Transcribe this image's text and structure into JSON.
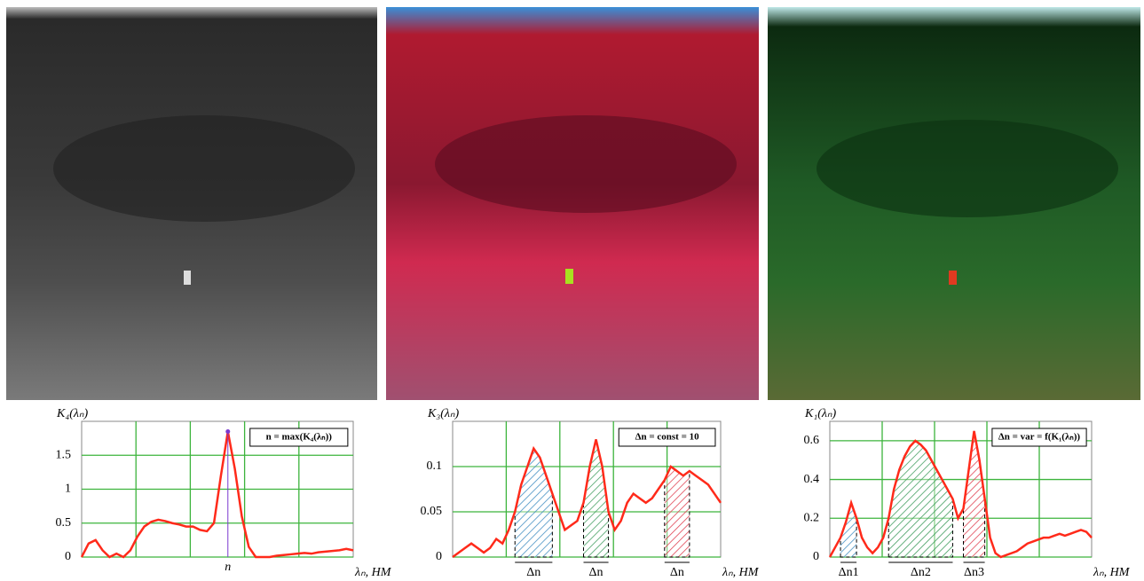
{
  "chart_data": [
    {
      "type": "line",
      "y_label": "K₄(λₙ)",
      "x_label": "λₙ, НМ",
      "annotation": "n = max(K₄(λₙ))",
      "peak_label": "n",
      "ylim": [
        0,
        2
      ],
      "yticks": [
        0,
        0.5,
        1,
        1.5
      ],
      "grid": true,
      "series": [
        {
          "color": "#ff2a1a",
          "values": [
            0.0,
            0.2,
            0.25,
            0.1,
            0.0,
            0.05,
            0.0,
            0.1,
            0.3,
            0.45,
            0.52,
            0.55,
            0.53,
            0.5,
            0.48,
            0.45,
            0.45,
            0.4,
            0.38,
            0.5,
            1.2,
            1.85,
            1.3,
            0.6,
            0.15,
            0.0,
            0.0,
            0.0,
            0.02,
            0.03,
            0.04,
            0.05,
            0.06,
            0.05,
            0.07,
            0.08,
            0.09,
            0.1,
            0.12,
            0.1
          ]
        }
      ]
    },
    {
      "type": "line",
      "y_label": "K₃(λₙ)",
      "x_label": "λₙ, НМ",
      "annotation": "Δn = const = 10",
      "interval_labels": [
        "Δn",
        "Δn",
        "Δn"
      ],
      "ylim": [
        0,
        0.15
      ],
      "yticks": [
        0,
        0.05,
        0.1
      ],
      "grid": true,
      "series": [
        {
          "color": "#ff2a1a",
          "values": [
            0,
            0.005,
            0.01,
            0.015,
            0.01,
            0.005,
            0.01,
            0.02,
            0.015,
            0.03,
            0.05,
            0.08,
            0.1,
            0.12,
            0.11,
            0.09,
            0.07,
            0.05,
            0.03,
            0.035,
            0.04,
            0.06,
            0.1,
            0.13,
            0.1,
            0.05,
            0.03,
            0.04,
            0.06,
            0.07,
            0.065,
            0.06,
            0.065,
            0.075,
            0.085,
            0.1,
            0.095,
            0.09,
            0.095,
            0.09,
            0.085,
            0.08,
            0.07,
            0.06
          ]
        }
      ]
    },
    {
      "type": "line",
      "y_label": "K₁(λₙ)",
      "x_label": "λₙ, НМ",
      "annotation": "Δn = var = f(K₁(λₙ))",
      "interval_labels": [
        "Δn1",
        "Δn2",
        "Δn3"
      ],
      "ylim": [
        0,
        0.7
      ],
      "yticks": [
        0,
        0.2,
        0.4,
        0.6
      ],
      "grid": true,
      "series": [
        {
          "color": "#ff2a1a",
          "values": [
            0,
            0.05,
            0.1,
            0.18,
            0.28,
            0.2,
            0.1,
            0.05,
            0.02,
            0.05,
            0.1,
            0.2,
            0.35,
            0.45,
            0.52,
            0.57,
            0.6,
            0.58,
            0.55,
            0.5,
            0.45,
            0.4,
            0.35,
            0.3,
            0.2,
            0.25,
            0.45,
            0.65,
            0.5,
            0.3,
            0.1,
            0.02,
            0.0,
            0.01,
            0.02,
            0.03,
            0.05,
            0.07,
            0.08,
            0.09,
            0.1,
            0.1,
            0.11,
            0.12,
            0.11,
            0.12,
            0.13,
            0.14,
            0.13,
            0.1
          ]
        }
      ]
    }
  ]
}
